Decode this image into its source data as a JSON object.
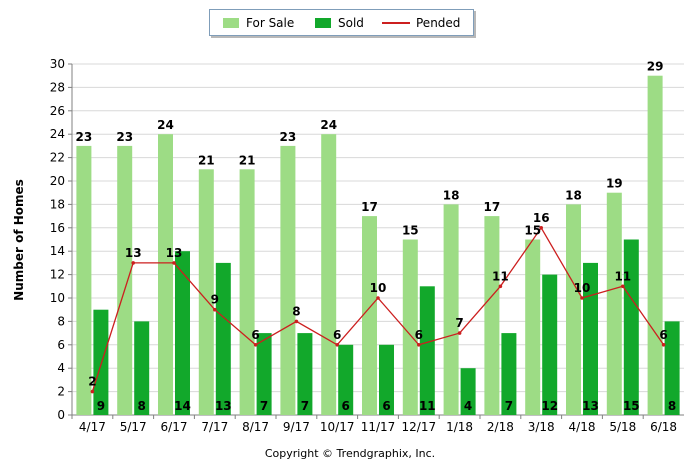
{
  "legend": {
    "for_sale": "For Sale",
    "sold": "Sold",
    "pended": "Pended"
  },
  "copyright": "Copyright © Trendgraphix, Inc.",
  "colors": {
    "for_sale": "#9ddc85",
    "sold": "#12a82b",
    "pended": "#cc1f1f",
    "grid": "#d8d8d8",
    "axis": "#808080"
  },
  "chart_data": {
    "type": "bar",
    "title": "",
    "xlabel": "",
    "ylabel": "Number of Homes",
    "ylim": [
      0,
      30
    ],
    "yticks": [
      0,
      2,
      4,
      6,
      8,
      10,
      12,
      14,
      16,
      18,
      20,
      22,
      24,
      26,
      28,
      30
    ],
    "grid": true,
    "legend_position": "top-center",
    "categories": [
      "4/17",
      "5/17",
      "6/17",
      "7/17",
      "8/17",
      "9/17",
      "10/17",
      "11/17",
      "12/17",
      "1/18",
      "2/18",
      "3/18",
      "4/18",
      "5/18",
      "6/18"
    ],
    "series": [
      {
        "name": "For Sale",
        "kind": "bar",
        "values": [
          23,
          23,
          24,
          21,
          21,
          23,
          24,
          17,
          15,
          18,
          17,
          15,
          18,
          19,
          29
        ]
      },
      {
        "name": "Sold",
        "kind": "bar",
        "values": [
          9,
          8,
          14,
          13,
          7,
          7,
          6,
          6,
          11,
          4,
          7,
          12,
          13,
          15,
          8
        ]
      },
      {
        "name": "Pended",
        "kind": "line",
        "values": [
          2,
          13,
          13,
          9,
          6,
          8,
          6,
          10,
          6,
          7,
          11,
          16,
          10,
          11,
          6
        ]
      }
    ]
  }
}
